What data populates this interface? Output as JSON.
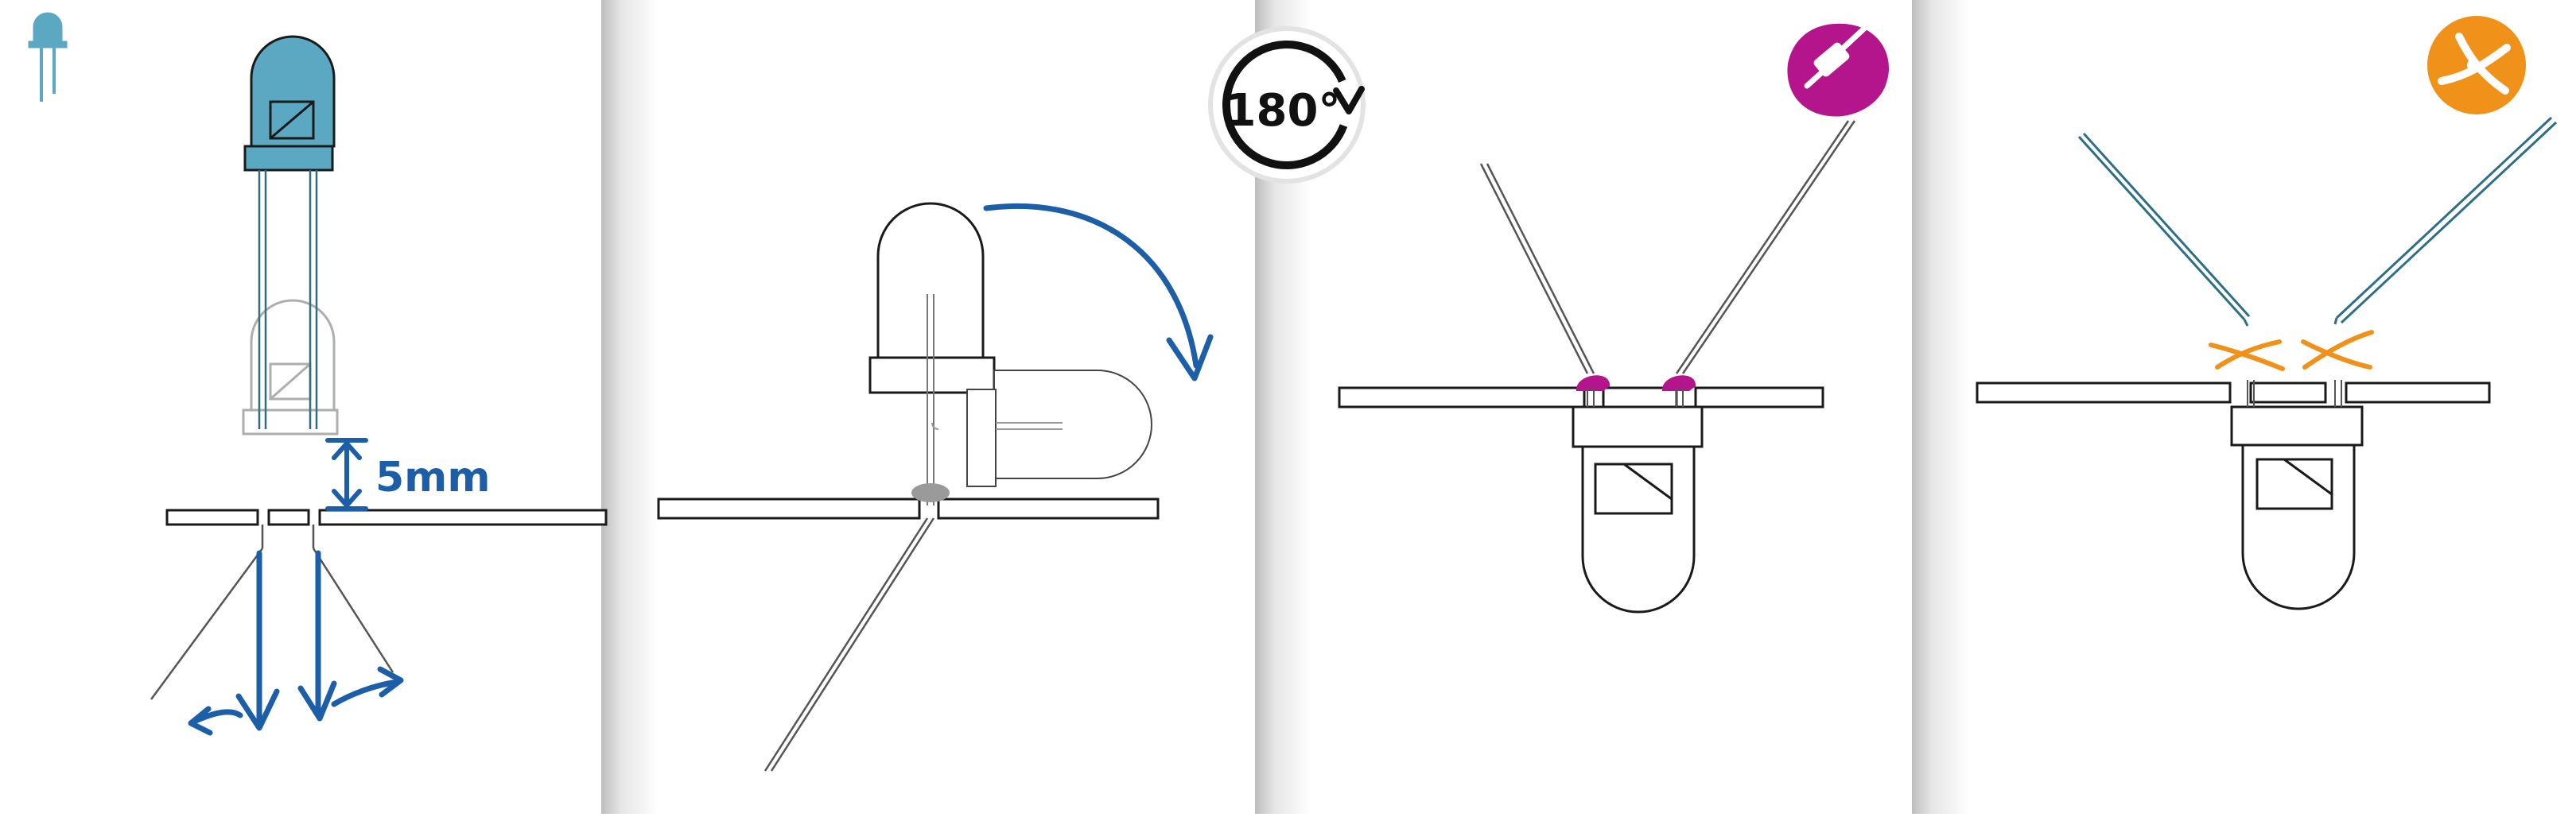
{
  "panels": [
    {
      "id": "panel-1",
      "step": "insert-led",
      "label": "5mm"
    },
    {
      "id": "panel-2",
      "step": "flip-board"
    },
    {
      "id": "panel-3",
      "step": "solder-legs"
    },
    {
      "id": "panel-4",
      "step": "cut-legs"
    }
  ],
  "badges": {
    "rotate_label": "180°"
  },
  "icons": {
    "led_icon": "led-icon",
    "rotate_icon": "rotate-180-icon",
    "solder_icon": "soldering-iron-icon",
    "cutter_icon": "wire-cutter-icon"
  },
  "colors": {
    "led_blue": "#5aa8c1",
    "arrow_blue": "#1c5ea8",
    "solder_magenta": "#b4158c",
    "cut_orange": "#f0921a",
    "solder_grey": "#9a9a9a",
    "lead_teal": "#2e6f86",
    "line": "#1a1a1a",
    "gutter_shadow": "#d7d7d7"
  }
}
